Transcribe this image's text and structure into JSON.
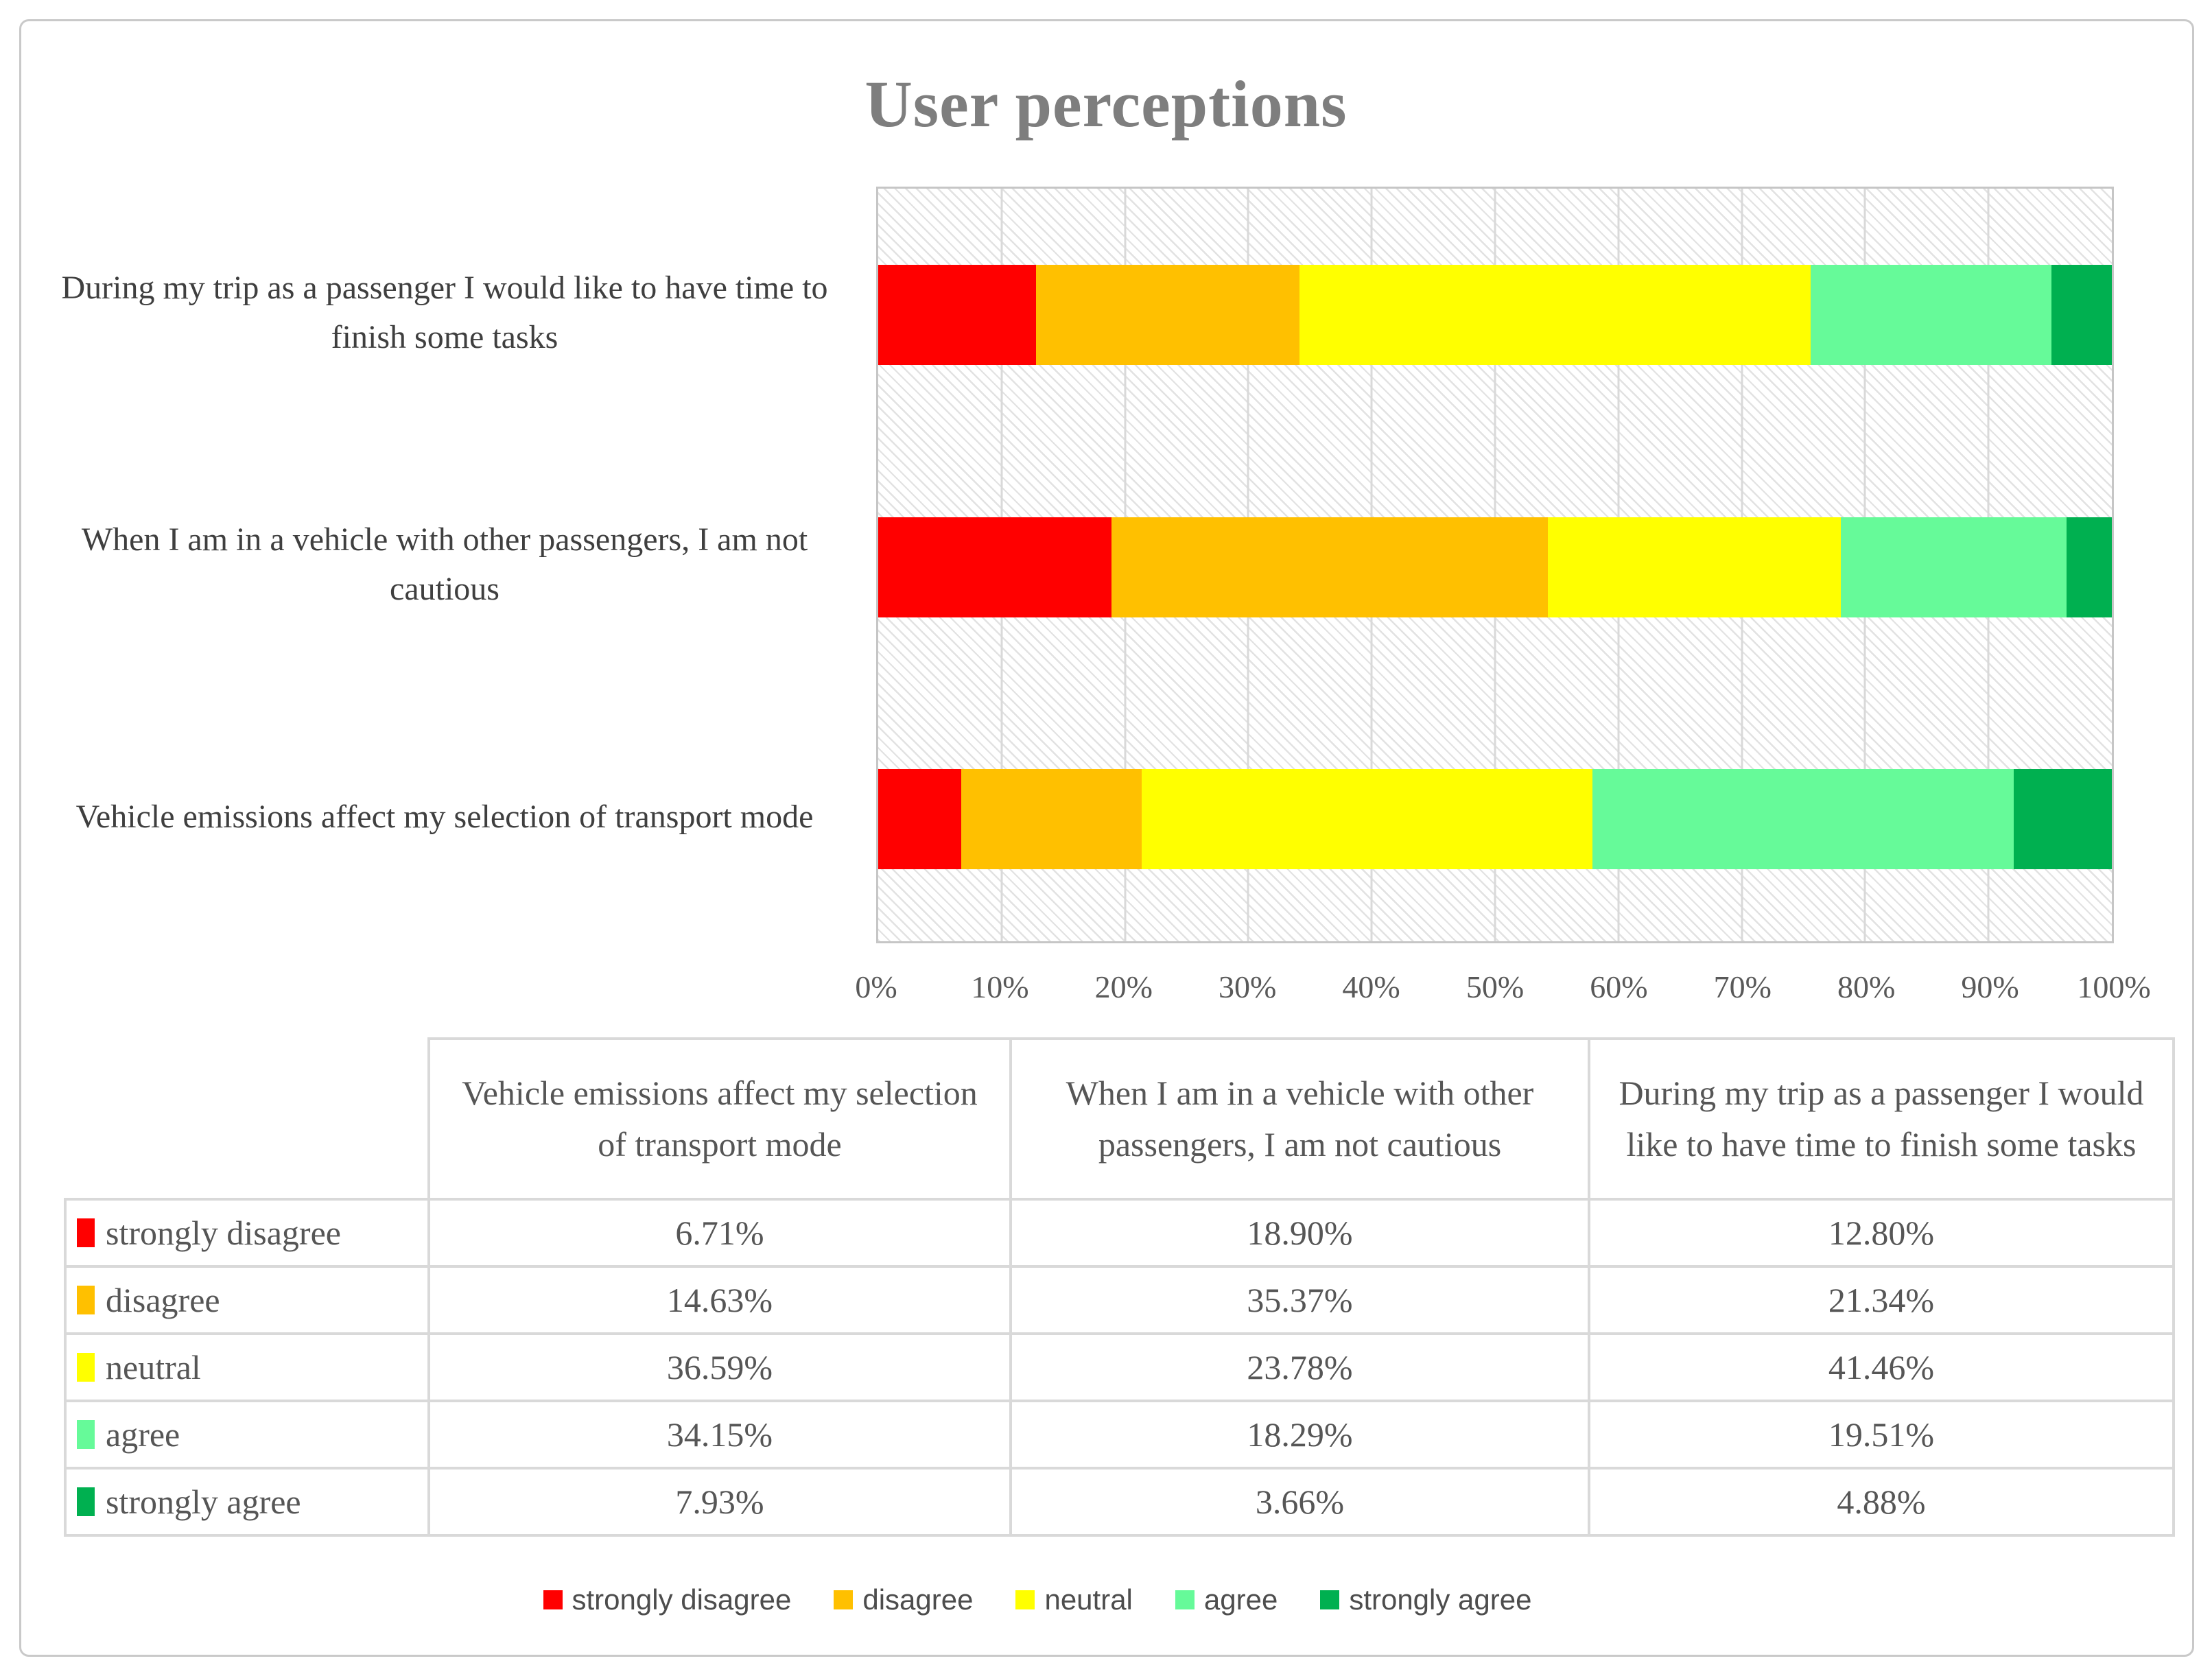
{
  "figure": {
    "title": "User perceptions"
  },
  "colors": {
    "strongly_disagree": "#FF0000",
    "disagree": "#FFC000",
    "neutral": "#FFFF00",
    "agree": "#66FA99",
    "strongly_agree": "#00B050",
    "gridline": "#D9D9D9",
    "plot_border": "#C6C6C6",
    "title_text": "#7E7E7E",
    "label_text": "#3F3F3F",
    "table_border": "#D9D9D9",
    "table_text": "#565656"
  },
  "chart_data": {
    "type": "bar",
    "orientation": "horizontal",
    "stacked": true,
    "title": "User perceptions",
    "grid": true,
    "legend_position": "bottom",
    "x_axis": {
      "range": [
        0,
        100
      ],
      "ticks": [
        "0%",
        "10%",
        "20%",
        "30%",
        "40%",
        "50%",
        "60%",
        "70%",
        "80%",
        "90%",
        "100%"
      ]
    },
    "categories": [
      "During my trip as a passenger I would like to have time to finish some tasks",
      "When I am in a vehicle with other passengers, I am not cautious",
      "Vehicle emissions affect my selection of transport mode"
    ],
    "series": [
      {
        "name": "strongly disagree",
        "color": "#FF0000",
        "values": [
          12.8,
          18.9,
          6.71
        ]
      },
      {
        "name": "disagree",
        "color": "#FFC000",
        "values": [
          21.34,
          35.37,
          14.63
        ]
      },
      {
        "name": "neutral",
        "color": "#FFFF00",
        "values": [
          41.46,
          23.78,
          36.59
        ]
      },
      {
        "name": "agree",
        "color": "#66FA99",
        "values": [
          19.51,
          18.29,
          34.15
        ]
      },
      {
        "name": "strongly agree",
        "color": "#00B050",
        "values": [
          4.88,
          3.66,
          7.93
        ]
      }
    ]
  },
  "table": {
    "columns": [
      "Vehicle emissions affect my selection of transport mode",
      "When I am in a vehicle with other passengers, I am not cautious",
      "During my trip as a passenger I would like to have time to finish some tasks"
    ],
    "rows": [
      {
        "label": "strongly disagree",
        "color": "#FF0000",
        "values": [
          "6.71%",
          "18.90%",
          "12.80%"
        ]
      },
      {
        "label": "disagree",
        "color": "#FFC000",
        "values": [
          "14.63%",
          "35.37%",
          "21.34%"
        ]
      },
      {
        "label": "neutral",
        "color": "#FFFF00",
        "values": [
          "36.59%",
          "23.78%",
          "41.46%"
        ]
      },
      {
        "label": "agree",
        "color": "#66FA99",
        "values": [
          "34.15%",
          "18.29%",
          "19.51%"
        ]
      },
      {
        "label": "strongly agree",
        "color": "#00B050",
        "values": [
          "7.93%",
          "3.66%",
          "4.88%"
        ]
      }
    ]
  },
  "legend": {
    "items": [
      {
        "label": "strongly disagree",
        "color": "#FF0000"
      },
      {
        "label": "disagree",
        "color": "#FFC000"
      },
      {
        "label": "neutral",
        "color": "#FFFF00"
      },
      {
        "label": "agree",
        "color": "#66FA99"
      },
      {
        "label": "strongly agree",
        "color": "#00B050"
      }
    ]
  }
}
